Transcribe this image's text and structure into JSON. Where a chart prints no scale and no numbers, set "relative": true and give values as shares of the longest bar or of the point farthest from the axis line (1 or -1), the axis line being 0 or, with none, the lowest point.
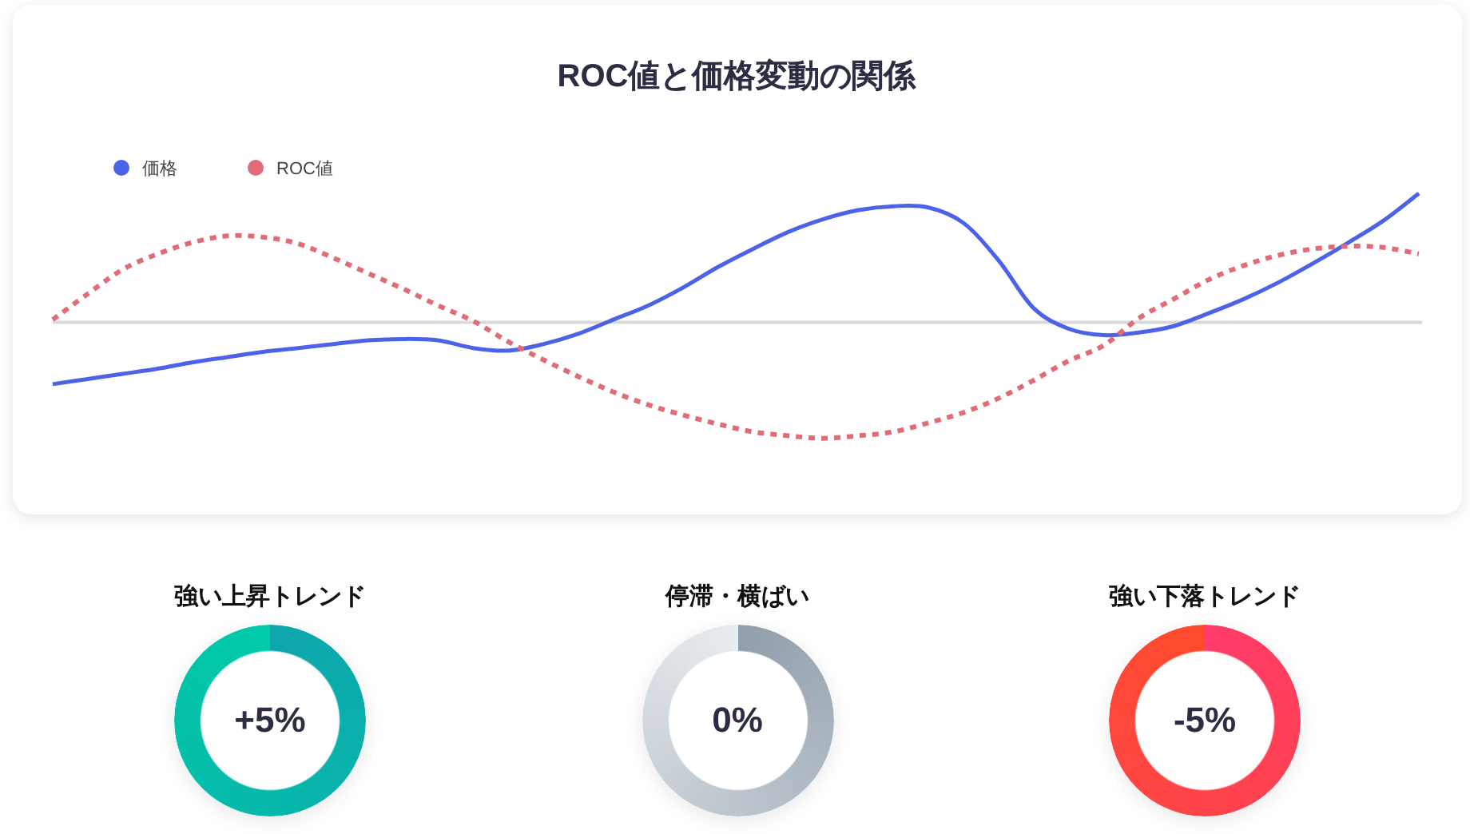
{
  "chart_data": [
    {
      "type": "line",
      "title": "ROC値と価格変動の関係",
      "relative": true,
      "legend": "top left",
      "categories": [
        null,
        null,
        null,
        null,
        null,
        null,
        null,
        null,
        null,
        null,
        null,
        null,
        null,
        null,
        null,
        null,
        null,
        null,
        null,
        null,
        null,
        null,
        null,
        null,
        null,
        null,
        null,
        null,
        null,
        null,
        null,
        null,
        null,
        null,
        null,
        null,
        null,
        null,
        null,
        null
      ],
      "series": [
        {
          "name": "価格",
          "color": "#4a63e8",
          "line_style": "solid",
          "values": [
            -0.48,
            -0.44,
            -0.4,
            -0.36,
            -0.31,
            -0.27,
            -0.23,
            -0.2,
            -0.17,
            -0.14,
            -0.13,
            -0.14,
            -0.2,
            -0.22,
            -0.17,
            -0.09,
            0.02,
            0.13,
            0.27,
            0.43,
            0.57,
            0.7,
            0.8,
            0.87,
            0.9,
            0.89,
            0.77,
            0.48,
            0.11,
            -0.05,
            -0.1,
            -0.08,
            -0.03,
            0.07,
            0.18,
            0.31,
            0.46,
            0.62,
            0.79,
            1
          ]
        },
        {
          "name": "ROC値",
          "color": "#e06c75",
          "line_style": "dashed",
          "values": [
            0.02,
            0.22,
            0.41,
            0.53,
            0.62,
            0.67,
            0.66,
            0.61,
            0.5,
            0.38,
            0.26,
            0.13,
            0.01,
            -0.15,
            -0.29,
            -0.42,
            -0.54,
            -0.64,
            -0.72,
            -0.79,
            -0.85,
            -0.88,
            -0.9,
            -0.88,
            -0.85,
            -0.78,
            -0.7,
            -0.59,
            -0.45,
            -0.3,
            -0.18,
            0.03,
            0.18,
            0.33,
            0.44,
            0.52,
            0.57,
            0.59,
            0.58,
            0.53
          ]
        }
      ]
    },
    {
      "type": "other",
      "title": "強い上昇トレンド",
      "annotations": [
        "+5%"
      ]
    },
    {
      "type": "other",
      "title": "停滞・横ばい",
      "annotations": [
        "0%"
      ]
    },
    {
      "type": "other",
      "title": "強い下落トレンド",
      "annotations": [
        "-5%"
      ]
    }
  ]
}
